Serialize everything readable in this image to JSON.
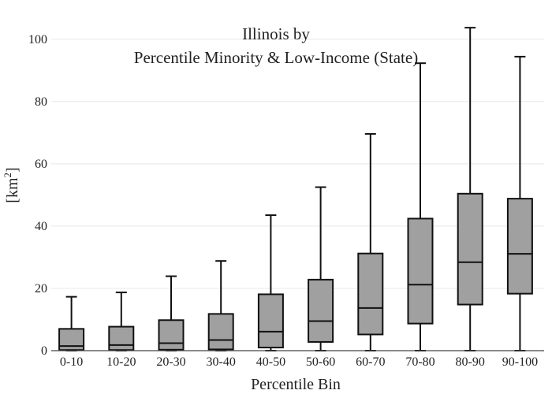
{
  "chart_data": {
    "type": "box",
    "title_lines": [
      "Illinois  by",
      "Percentile Minority & Low-Income (State)"
    ],
    "xlabel": "Percentile Bin",
    "ylabel": "[km",
    "ylabel_superscript": "2",
    "ylabel_suffix": "]",
    "ylim": [
      0,
      105
    ],
    "yticks": [
      0,
      20,
      40,
      60,
      80,
      100
    ],
    "grid": true,
    "box_color": "#a0a0a0",
    "line_color": "#111111",
    "grid_color": "#e8e8e8",
    "categories": [
      "0-10",
      "10-20",
      "20-30",
      "30-40",
      "40-50",
      "50-60",
      "60-70",
      "70-80",
      "80-90",
      "90-100"
    ],
    "boxes": [
      {
        "min": 0,
        "q1": 0.2,
        "median": 1.5,
        "q3": 7,
        "max": 17.3
      },
      {
        "min": 0,
        "q1": 0.2,
        "median": 1.8,
        "q3": 7.7,
        "max": 18.7
      },
      {
        "min": 0,
        "q1": 0.3,
        "median": 2.4,
        "q3": 9.8,
        "max": 23.9
      },
      {
        "min": 0,
        "q1": 0.4,
        "median": 3.4,
        "q3": 11.8,
        "max": 28.8
      },
      {
        "min": 0,
        "q1": 1,
        "median": 6.1,
        "q3": 18.1,
        "max": 43.5
      },
      {
        "min": 0,
        "q1": 2.8,
        "median": 9.5,
        "q3": 22.8,
        "max": 52.5
      },
      {
        "min": 0,
        "q1": 5.2,
        "median": 13.7,
        "q3": 31.2,
        "max": 69.6
      },
      {
        "min": 0,
        "q1": 8.7,
        "median": 21.2,
        "q3": 42.4,
        "max": 92.3
      },
      {
        "min": 0,
        "q1": 14.8,
        "median": 28.4,
        "q3": 50.4,
        "max": 103.7
      },
      {
        "min": 0,
        "q1": 18.3,
        "median": 31.1,
        "q3": 48.8,
        "max": 94.4
      }
    ]
  }
}
